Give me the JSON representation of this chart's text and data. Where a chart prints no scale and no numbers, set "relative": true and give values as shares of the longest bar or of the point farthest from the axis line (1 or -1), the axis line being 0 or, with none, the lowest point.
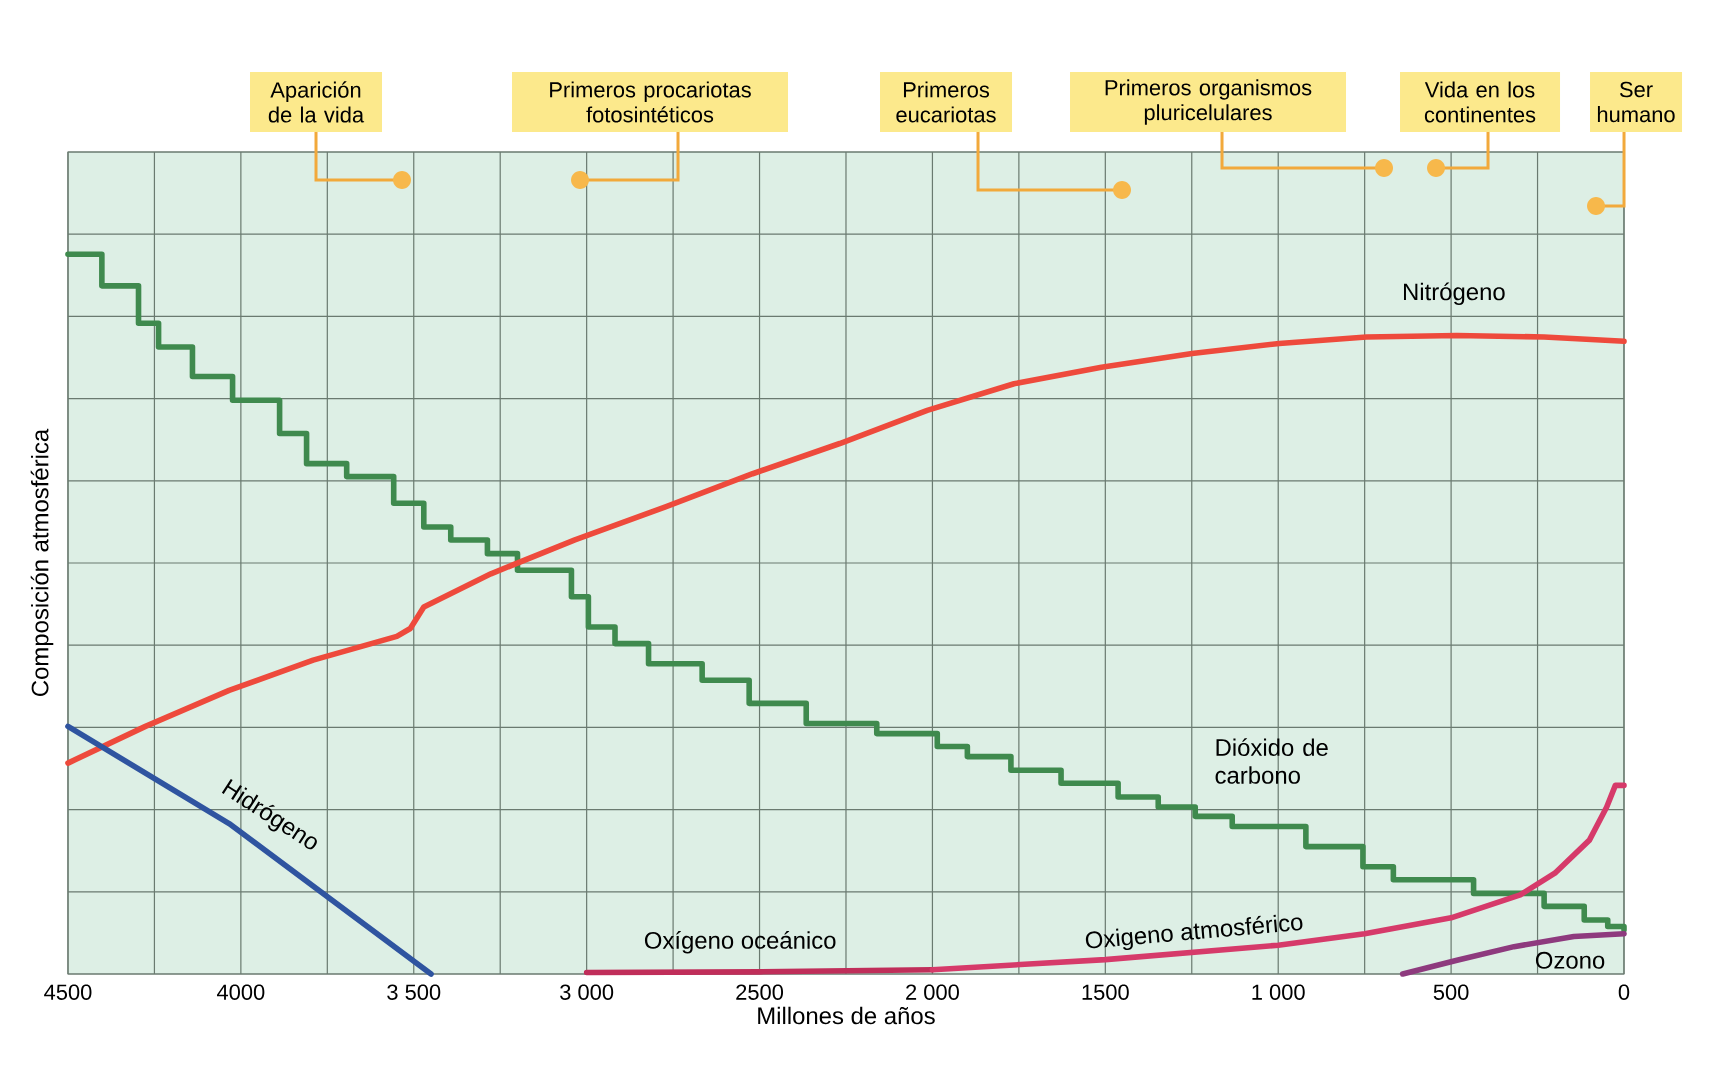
{
  "chart_data": {
    "type": "line",
    "relative": true,
    "xlabel": "Millones de años",
    "ylabel": "Composición atmosférica",
    "grid": true,
    "tick_labels": "x",
    "xlim": [
      4500,
      0
    ],
    "xticks": [
      4500,
      {
        "value": 4250,
        "label": null
      },
      4000,
      {
        "value": 3750,
        "label": null
      },
      {
        "value": 3500,
        "label": "3 500"
      },
      {
        "value": 3250,
        "label": null
      },
      {
        "value": 3000,
        "label": "3 000"
      },
      {
        "value": 2750,
        "label": null
      },
      2500,
      {
        "value": 2250,
        "label": null
      },
      {
        "value": 2000,
        "label": "2 000"
      },
      {
        "value": 1750,
        "label": null
      },
      1500,
      {
        "value": 1250,
        "label": null
      },
      {
        "value": 1000,
        "label": "1 000"
      },
      {
        "value": 750,
        "label": null
      },
      500,
      {
        "value": 250,
        "label": null
      },
      0
    ],
    "series": [
      {
        "name": "Dióxido de carbono",
        "type": "step",
        "color": "#3f8a4e",
        "x": [
          4500,
          4402,
          4296,
          4238,
          4140,
          4024,
          3888,
          3810,
          3694,
          3558,
          3471,
          3393,
          3287,
          3200,
          3044,
          2995,
          2918,
          2821,
          2666,
          2530,
          2365,
          2161,
          1986,
          1899,
          1773,
          1628,
          1463,
          1347,
          1240,
          1133,
          920,
          755,
          667,
          435,
          231,
          115,
          47,
          0
        ],
        "values": [
          1.0,
          0.956,
          0.904,
          0.871,
          0.83,
          0.797,
          0.751,
          0.709,
          0.691,
          0.654,
          0.621,
          0.603,
          0.584,
          0.561,
          0.524,
          0.482,
          0.459,
          0.431,
          0.408,
          0.376,
          0.348,
          0.334,
          0.316,
          0.302,
          0.283,
          0.265,
          0.246,
          0.232,
          0.219,
          0.205,
          0.177,
          0.149,
          0.131,
          0.112,
          0.094,
          0.075,
          0.066,
          0.061
        ]
      },
      {
        "name": "Nitrógeno",
        "color": "#ee4a3c",
        "x": [
          4500,
          4276,
          4034,
          3791,
          3549,
          3510,
          3471,
          3277,
          3034,
          2772,
          2520,
          2268,
          2015,
          1764,
          1511,
          1249,
          997,
          745,
          483,
          231,
          0
        ],
        "values": [
          0.293,
          0.344,
          0.394,
          0.436,
          0.469,
          0.48,
          0.51,
          0.556,
          0.603,
          0.649,
          0.695,
          0.737,
          0.783,
          0.82,
          0.843,
          0.862,
          0.876,
          0.885,
          0.887,
          0.885,
          0.879
        ]
      },
      {
        "name": "Hidrógeno",
        "color": "#2f54a0",
        "x": [
          4500,
          4034,
          3450
        ],
        "values": [
          0.344,
          0.209,
          0.0
        ]
      },
      {
        "name": "Oxígeno oceánico",
        "color": "#c02e5a",
        "x": [
          3000,
          2500,
          2000
        ],
        "values": [
          0.002,
          0.003,
          0.006
        ]
      },
      {
        "name": "Oxigeno atmosférico",
        "color": "#d63a6a",
        "x": [
          2000,
          1500,
          1000,
          750,
          500,
          300,
          200,
          100,
          50,
          25,
          0
        ],
        "values": [
          0.006,
          0.02,
          0.04,
          0.056,
          0.078,
          0.11,
          0.14,
          0.186,
          0.232,
          0.262,
          0.262
        ]
      },
      {
        "name": "Ozono",
        "color": "#8e3a7e",
        "x": [
          640,
          483,
          318,
          145,
          0
        ],
        "values": [
          0.0,
          0.019,
          0.038,
          0.052,
          0.056
        ]
      }
    ],
    "annotations": [
      "Aparición de la vida",
      "Primeros procariotas fotosintéticos",
      "Primeros eucariotas",
      "Primeros organismos pluricelulares",
      "Vida en los continentes",
      "Ser humano"
    ]
  }
}
